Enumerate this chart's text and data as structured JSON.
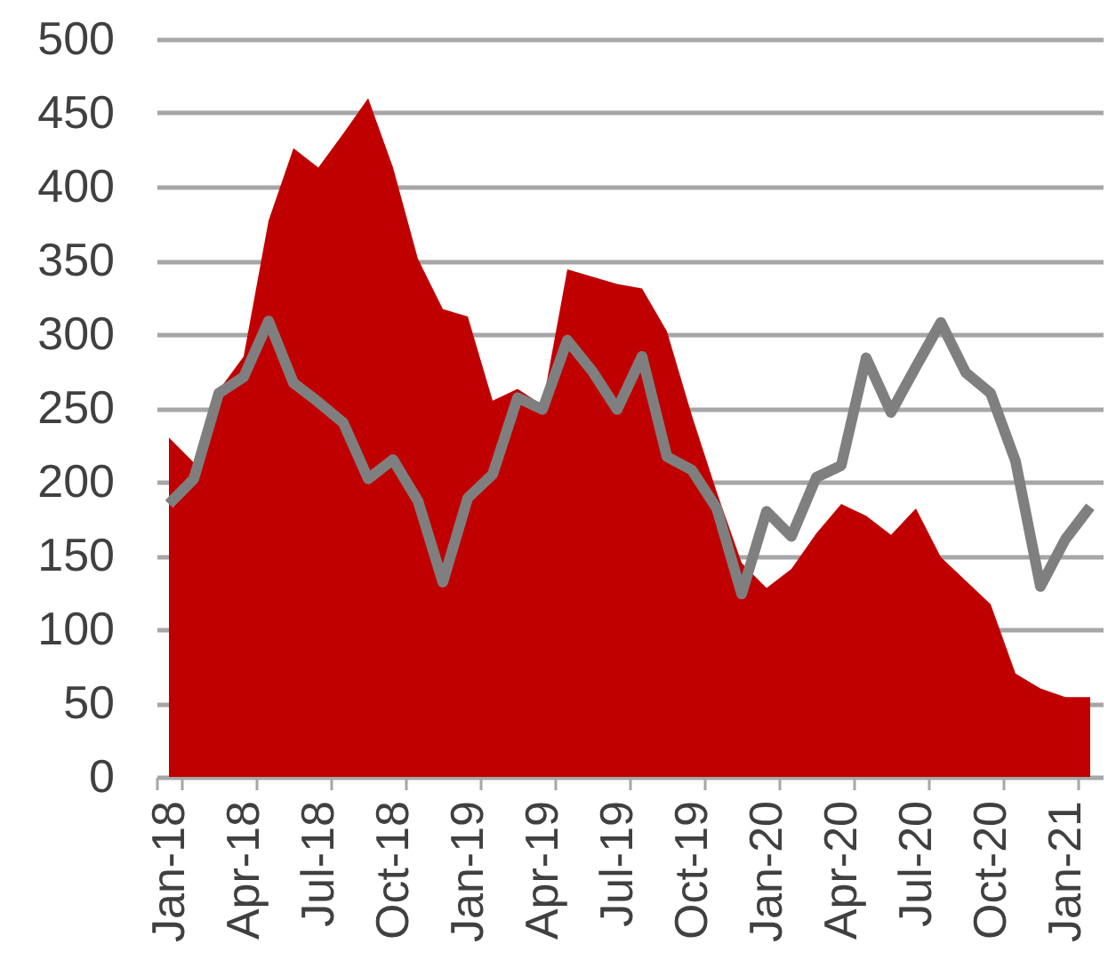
{
  "chart_data": {
    "type": "area",
    "categories": [
      "Jan-18",
      null,
      null,
      "Apr-18",
      null,
      null,
      "Jul-18",
      null,
      null,
      "Oct-18",
      null,
      null,
      "Jan-19",
      null,
      null,
      "Apr-19",
      null,
      null,
      "Jul-19",
      null,
      null,
      "Oct-19",
      null,
      null,
      "Jan-20",
      null,
      null,
      "Apr-20",
      null,
      null,
      "Jul-20",
      null,
      null,
      "Oct-20",
      null,
      null,
      "Jan-21",
      null
    ],
    "series": [
      {
        "color": "#c00000",
        "values": [
          230,
          213,
          262,
          285,
          377,
          426,
          413,
          436,
          460,
          413,
          351,
          317,
          312,
          255,
          263,
          252,
          344,
          339,
          334,
          331,
          302,
          245,
          193,
          145,
          128,
          141,
          165,
          185,
          177,
          164,
          182,
          149,
          133,
          117,
          70,
          60,
          54,
          54
        ]
      },
      {
        "type": "line",
        "color": "#7f7f7f",
        "values": [
          185,
          202,
          260,
          271,
          309,
          267,
          254,
          240,
          202,
          215,
          187,
          132,
          189,
          205,
          257,
          249,
          296,
          275,
          249,
          285,
          217,
          208,
          182,
          124,
          180,
          163,
          203,
          211,
          284,
          247,
          278,
          308,
          274,
          260,
          214,
          129,
          161,
          183
        ]
      }
    ],
    "ylim": [
      0,
      500
    ],
    "yticks": [
      0,
      50,
      100,
      150,
      200,
      250,
      300,
      350,
      400,
      450,
      500
    ],
    "grid": "y"
  }
}
